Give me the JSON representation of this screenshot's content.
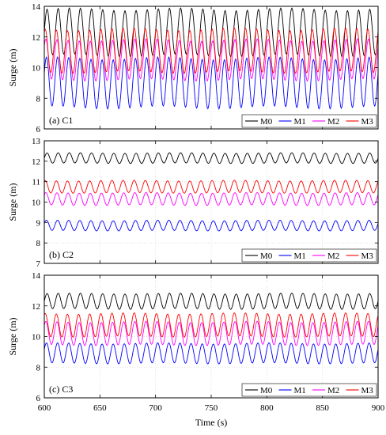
{
  "chart_data": {
    "type": "line",
    "xlabel": "Time (s)",
    "xlim": [
      600,
      900
    ],
    "x_ticks": [
      600,
      650,
      700,
      750,
      800,
      850,
      900
    ],
    "grid": true,
    "legend_placement": "bottom-right",
    "series_styles": [
      {
        "name": "M0",
        "color": "#000000"
      },
      {
        "name": "M1",
        "color": "#0000ff"
      },
      {
        "name": "M2",
        "color": "#ff00ff"
      },
      {
        "name": "M3",
        "color": "#ff0000"
      }
    ],
    "period_s": 10,
    "panels": [
      {
        "label": "(a) C1",
        "ylabel": "Surge (m)",
        "ylim": [
          6,
          14
        ],
        "y_ticks": [
          6,
          8,
          10,
          12,
          14
        ],
        "series": [
          {
            "name": "M0",
            "mean": 12.3,
            "amplitude": 1.5
          },
          {
            "name": "M1",
            "mean": 9.0,
            "amplitude": 1.6
          },
          {
            "name": "M2",
            "mean": 10.5,
            "amplitude": 1.3
          },
          {
            "name": "M3",
            "mean": 11.1,
            "amplitude": 1.4
          }
        ]
      },
      {
        "label": "(b) C2",
        "ylabel": "Surge (m)",
        "ylim": [
          7,
          13
        ],
        "y_ticks": [
          7,
          8,
          9,
          10,
          11,
          12,
          13
        ],
        "series": [
          {
            "name": "M0",
            "mean": 12.15,
            "amplitude": 0.25
          },
          {
            "name": "M1",
            "mean": 8.85,
            "amplitude": 0.25
          },
          {
            "name": "M2",
            "mean": 10.15,
            "amplitude": 0.3
          },
          {
            "name": "M3",
            "mean": 10.75,
            "amplitude": 0.3
          }
        ]
      },
      {
        "label": "(c) C3",
        "ylabel": "Surge (m)",
        "ylim": [
          6,
          14
        ],
        "y_ticks": [
          6,
          8,
          10,
          12,
          14
        ],
        "series": [
          {
            "name": "M0",
            "mean": 12.3,
            "amplitude": 0.5
          },
          {
            "name": "M1",
            "mean": 8.9,
            "amplitude": 0.65
          },
          {
            "name": "M2",
            "mean": 10.2,
            "amplitude": 0.75
          },
          {
            "name": "M3",
            "mean": 10.75,
            "amplitude": 0.75
          }
        ]
      }
    ]
  }
}
